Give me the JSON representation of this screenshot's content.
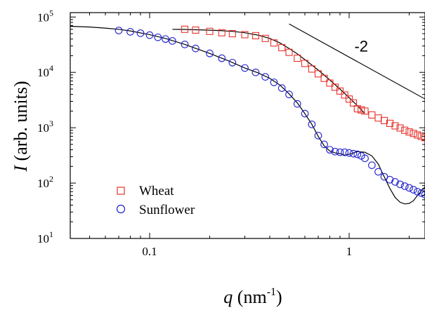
{
  "chart_data": {
    "type": "scatter",
    "title": "",
    "xlabel": {
      "var": "q",
      "text": " (nm",
      "sup": "-1",
      "close": ")"
    },
    "ylabel": {
      "var": "I",
      "text": " (arb. units)"
    },
    "xscale": "log",
    "yscale": "log",
    "xlim": [
      0.04,
      2.4
    ],
    "ylim": [
      10,
      120000
    ],
    "xticks": [
      {
        "value": 0.1,
        "label": "0.1"
      },
      {
        "value": 1,
        "label": "1"
      }
    ],
    "yticks": [
      {
        "value": 10,
        "base": "10",
        "exp": "1"
      },
      {
        "value": 100,
        "base": "10",
        "exp": "2"
      },
      {
        "value": 1000,
        "base": "10",
        "exp": "3"
      },
      {
        "value": 10000,
        "base": "10",
        "exp": "4"
      },
      {
        "value": 100000,
        "base": "10",
        "exp": "5"
      }
    ],
    "grid": false,
    "legend_position": "lower-left",
    "series": [
      {
        "name": "Wheat",
        "marker": "open-square",
        "color": "#e8322a",
        "x": [
          0.15,
          0.17,
          0.2,
          0.23,
          0.26,
          0.3,
          0.34,
          0.38,
          0.42,
          0.46,
          0.5,
          0.55,
          0.6,
          0.65,
          0.7,
          0.75,
          0.8,
          0.85,
          0.9,
          0.95,
          1.0,
          1.05,
          1.1,
          1.15,
          1.2,
          1.3,
          1.4,
          1.5,
          1.6,
          1.7,
          1.8,
          1.9,
          2.0,
          2.1,
          2.2,
          2.3,
          2.4
        ],
        "y": [
          60000,
          58000,
          55000,
          52000,
          50000,
          48000,
          46000,
          41000,
          34000,
          28000,
          23000,
          18000,
          14500,
          11500,
          9400,
          7800,
          6400,
          5400,
          4600,
          3900,
          3300,
          2800,
          2200,
          2100,
          2000,
          1700,
          1500,
          1350,
          1200,
          1080,
          990,
          900,
          840,
          790,
          740,
          700,
          660
        ]
      },
      {
        "name": "Sunflower",
        "marker": "open-circle",
        "color": "#1f1fd1",
        "x": [
          0.07,
          0.08,
          0.09,
          0.1,
          0.11,
          0.12,
          0.13,
          0.15,
          0.17,
          0.2,
          0.23,
          0.26,
          0.3,
          0.34,
          0.38,
          0.42,
          0.46,
          0.5,
          0.55,
          0.6,
          0.65,
          0.7,
          0.75,
          0.8,
          0.85,
          0.9,
          0.95,
          1.0,
          1.05,
          1.1,
          1.15,
          1.2,
          1.3,
          1.4,
          1.5,
          1.6,
          1.7,
          1.8,
          1.9,
          2.0,
          2.1,
          2.2,
          2.3,
          2.4
        ],
        "y": [
          57000,
          54000,
          51000,
          47000,
          43000,
          40000,
          37000,
          32000,
          27000,
          22000,
          18000,
          15000,
          12000,
          10000,
          8300,
          6600,
          5200,
          4000,
          2700,
          1800,
          1150,
          720,
          500,
          400,
          370,
          360,
          360,
          350,
          340,
          330,
          310,
          280,
          210,
          160,
          130,
          115,
          105,
          95,
          88,
          82,
          76,
          70,
          66,
          62
        ]
      }
    ],
    "fits": [
      {
        "color": "#000000",
        "x": [
          0.13,
          0.15,
          0.18,
          0.22,
          0.26,
          0.3,
          0.35,
          0.4,
          0.45,
          0.5,
          0.55,
          0.6,
          0.7,
          0.8,
          0.9,
          1.0,
          1.1,
          1.2
        ],
        "y": [
          60000,
          59500,
          58500,
          57000,
          55000,
          52000,
          47000,
          41000,
          34000,
          27000,
          21500,
          17000,
          11000,
          7300,
          5000,
          3500,
          2500,
          1800
        ]
      },
      {
        "color": "#000000",
        "x": [
          0.04,
          0.05,
          0.06,
          0.07,
          0.08,
          0.1,
          0.12,
          0.15,
          0.2,
          0.25,
          0.3,
          0.35,
          0.4,
          0.45,
          0.5,
          0.55,
          0.6,
          0.65,
          0.7,
          0.75,
          0.8,
          0.85,
          0.9,
          0.95,
          1.0,
          1.05,
          1.1,
          1.2,
          1.3,
          1.4,
          1.5,
          1.6,
          1.7,
          1.8,
          1.9,
          2.0,
          2.1,
          2.2,
          2.3,
          2.4
        ],
        "y": [
          68000,
          66000,
          63000,
          60000,
          56000,
          48000,
          41000,
          32000,
          22000,
          16000,
          12000,
          9800,
          7800,
          5900,
          4100,
          2800,
          1800,
          1150,
          700,
          470,
          380,
          350,
          340,
          320,
          330,
          350,
          370,
          360,
          310,
          220,
          130,
          80,
          55,
          45,
          42,
          43,
          48,
          60,
          72,
          85
        ]
      }
    ],
    "annotations": [
      {
        "type": "slope-line",
        "label": "-2",
        "x": [
          0.5,
          2.4
        ],
        "y": [
          75000,
          3300
        ]
      }
    ]
  }
}
